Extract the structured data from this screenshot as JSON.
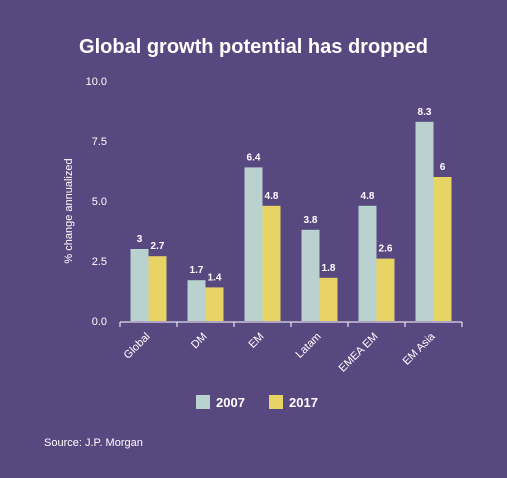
{
  "chart_data": {
    "type": "bar",
    "title": "Global growth potential has dropped",
    "ylabel": "% change annualized",
    "xlabel": "",
    "ylim": [
      0,
      10
    ],
    "yticks": [
      "0.0",
      "2.5",
      "5.0",
      "7.5",
      "10.0"
    ],
    "categories": [
      "Global",
      "DM",
      "EM",
      "Latam",
      "EMEA EM",
      "EM Asia"
    ],
    "series": [
      {
        "name": "2007",
        "color": "#b9d1cf",
        "values": [
          3,
          1.7,
          6.4,
          3.8,
          4.8,
          8.3
        ]
      },
      {
        "name": "2017",
        "color": "#e8d365",
        "values": [
          2.7,
          1.4,
          4.8,
          1.8,
          2.6,
          6
        ]
      }
    ],
    "legend_position": "bottom",
    "grid": false
  },
  "source": "Source: J.P. Morgan"
}
